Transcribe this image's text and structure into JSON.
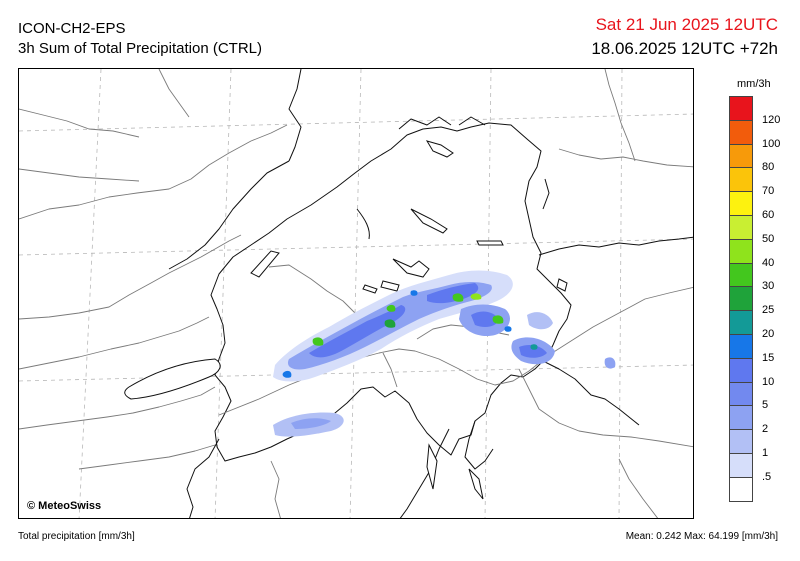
{
  "header": {
    "model": "ICON-CH2-EPS",
    "product": "3h Sum of Total Precipitation (CTRL)",
    "valid_time": "Sat 21 Jun 2025 12UTC",
    "run_info": "18.06.2025 12UTC +72h"
  },
  "map": {
    "copyright": "© MeteoSwiss"
  },
  "legend": {
    "unit": "mm/3h",
    "levels": [
      {
        "label": "120",
        "color": "#e8141c"
      },
      {
        "label": "100",
        "color": "#f25c0c"
      },
      {
        "label": "80",
        "color": "#f79a0a"
      },
      {
        "label": "70",
        "color": "#fbc40a"
      },
      {
        "label": "60",
        "color": "#fdf20f"
      },
      {
        "label": "50",
        "color": "#c9ef32"
      },
      {
        "label": "40",
        "color": "#8fe31c"
      },
      {
        "label": "30",
        "color": "#43c71e"
      },
      {
        "label": "25",
        "color": "#1fa33a"
      },
      {
        "label": "20",
        "color": "#139a97"
      },
      {
        "label": "15",
        "color": "#1777e8"
      },
      {
        "label": "10",
        "color": "#5f78ef"
      },
      {
        "label": "5",
        "color": "#7289ef"
      },
      {
        "label": "2",
        "color": "#8da2f2"
      },
      {
        "label": "1",
        "color": "#b2c0f5"
      },
      {
        "label": ".5",
        "color": "#d6defa"
      },
      {
        "label": "",
        "color": "#ffffff"
      }
    ]
  },
  "footer": {
    "left": "Total precipitation [mm/3h]",
    "right": "Mean:   0.242 Max:  64.199 [mm/3h]"
  }
}
